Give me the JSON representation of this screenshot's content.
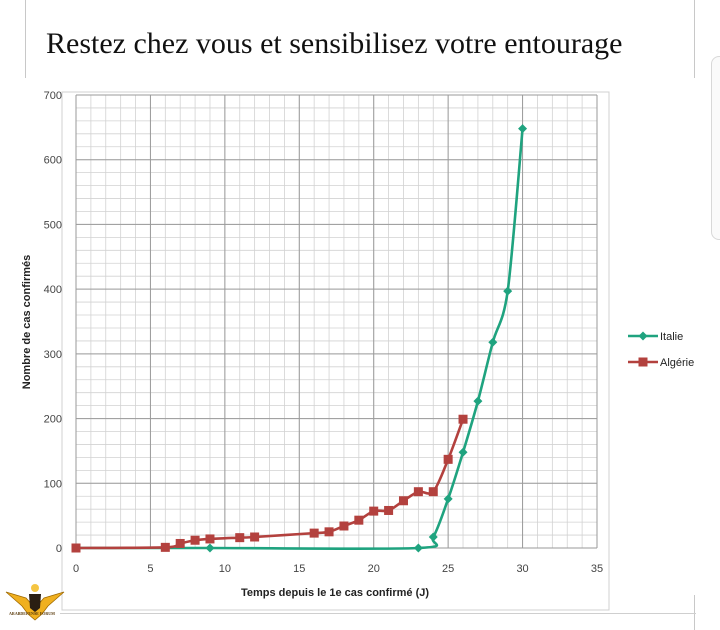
{
  "banner": {
    "title": "Restez chez vous et sensibilisez votre entourage"
  },
  "logo": {
    "line1": "ARABDEFENSE FORUM",
    "line2": ""
  },
  "chart_data": {
    "type": "line",
    "title": "",
    "xlabel": "Temps depuis le 1e cas confirmé (J)",
    "ylabel": "Nombre de cas confirmés",
    "xlim": [
      0,
      35
    ],
    "ylim": [
      0,
      700
    ],
    "xticks": [
      0,
      5,
      10,
      15,
      20,
      25,
      30,
      35
    ],
    "yticks": [
      0,
      100,
      200,
      300,
      400,
      500,
      600,
      700
    ],
    "grid": true,
    "legend_position": "right",
    "series": [
      {
        "name": "Italie",
        "color": "#1fa37f",
        "marker": "diamond",
        "points": [
          [
            0,
            0
          ],
          [
            9,
            0
          ],
          [
            23,
            0
          ],
          [
            24,
            17
          ],
          [
            25,
            76
          ],
          [
            26,
            148
          ],
          [
            27,
            227
          ],
          [
            28,
            318
          ],
          [
            29,
            397
          ],
          [
            30,
            648
          ]
        ]
      },
      {
        "name": "Algérie",
        "color": "#b3413e",
        "marker": "square",
        "points": [
          [
            0,
            0
          ],
          [
            6,
            1
          ],
          [
            7,
            7
          ],
          [
            8,
            12
          ],
          [
            9,
            14
          ],
          [
            11,
            16
          ],
          [
            12,
            17
          ],
          [
            16,
            23
          ],
          [
            17,
            25
          ],
          [
            18,
            34
          ],
          [
            19,
            43
          ],
          [
            20,
            57
          ],
          [
            21,
            58
          ],
          [
            22,
            73
          ],
          [
            23,
            87
          ],
          [
            24,
            87
          ],
          [
            25,
            137
          ],
          [
            26,
            199
          ]
        ]
      }
    ]
  }
}
